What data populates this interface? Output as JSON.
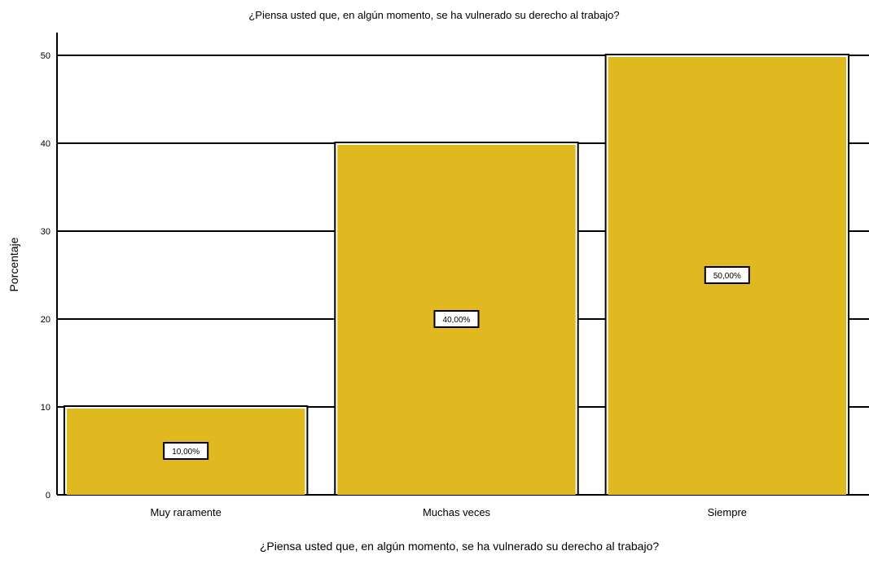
{
  "chart_data": {
    "type": "bar",
    "title": "¿Piensa usted que, en algún momento, se ha vulnerado su derecho al trabajo?",
    "xlabel": "¿Piensa usted que, en algún momento, se ha vulnerado su derecho al trabajo?",
    "ylabel": "Porcentaje",
    "categories": [
      "Muy raramente",
      "Muchas veces",
      "Siempre"
    ],
    "values": [
      10.0,
      40.0,
      50.0
    ],
    "value_labels": [
      "10,00%",
      "40,00%",
      "50,00%"
    ],
    "yticks": [
      0,
      10,
      20,
      30,
      40,
      50
    ],
    "ylim": [
      0,
      50
    ],
    "grid": true,
    "legend": "none",
    "bar_color": "#e0b820",
    "grid_color": "#000000"
  }
}
